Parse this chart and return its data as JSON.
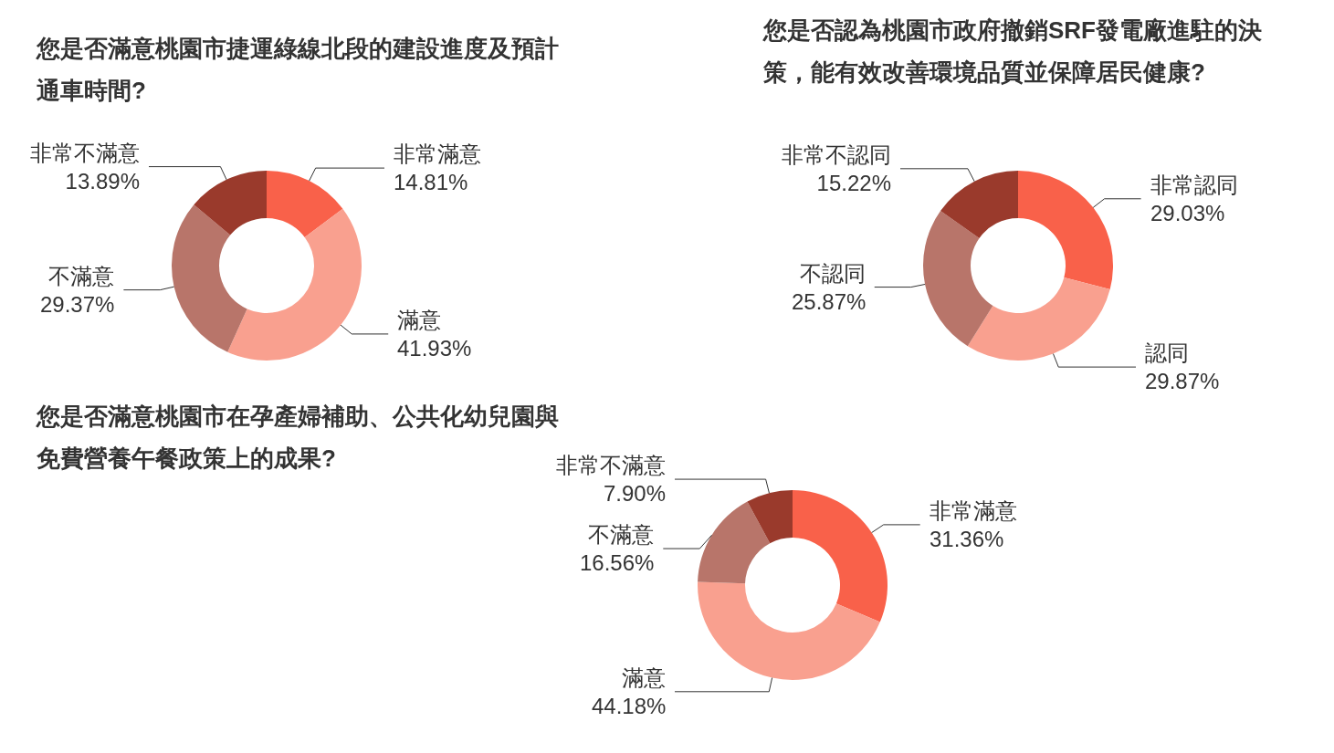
{
  "chart_data": [
    {
      "type": "donut",
      "title": "您是否滿意桃園市捷運綠線北段的建設進度及預計通車時間?",
      "categories": [
        "非常滿意",
        "滿意",
        "不滿意",
        "非常不滿意"
      ],
      "values": [
        14.81,
        41.93,
        29.37,
        13.89
      ],
      "value_labels": [
        "14.81%",
        "41.93%",
        "29.37%",
        "13.89%"
      ],
      "colors": [
        "#f9614a",
        "#f9a08f",
        "#b8756a",
        "#9a3a2c"
      ]
    },
    {
      "type": "donut",
      "title": "您是否認為桃園市政府撤銷SRF發電廠進駐的決策，能有效改善環境品質並保障居民健康?",
      "categories": [
        "非常認同",
        "認同",
        "不認同",
        "非常不認同"
      ],
      "values": [
        29.03,
        29.87,
        25.87,
        15.22
      ],
      "value_labels": [
        "29.03%",
        "29.87%",
        "25.87%",
        "15.22%"
      ],
      "colors": [
        "#f9614a",
        "#f9a08f",
        "#b8756a",
        "#9a3a2c"
      ]
    },
    {
      "type": "donut",
      "title": "您是否滿意桃園市在孕產婦補助、公共化幼兒園與免費營養午餐政策上的成果?",
      "categories": [
        "非常滿意",
        "滿意",
        "不滿意",
        "非常不滿意"
      ],
      "values": [
        31.36,
        44.18,
        16.56,
        7.9
      ],
      "value_labels": [
        "31.36%",
        "44.18%",
        "16.56%",
        "7.90%"
      ],
      "colors": [
        "#f9614a",
        "#f9a08f",
        "#b8756a",
        "#9a3a2c"
      ]
    }
  ]
}
